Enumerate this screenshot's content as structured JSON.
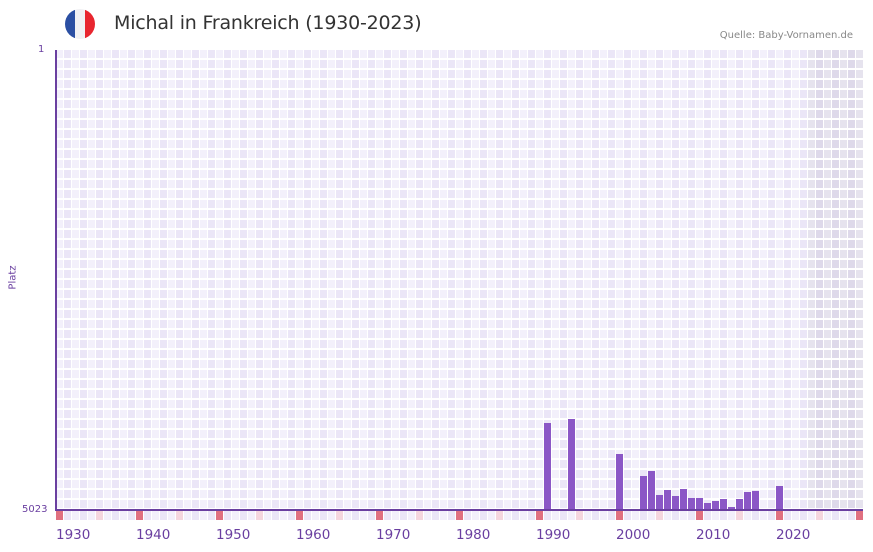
{
  "header": {
    "title": "Michal in Frankreich (1930-2023)",
    "source": "Quelle: Baby-Vornamen.de",
    "flag_colors": [
      "#2b4fa3",
      "#f1f1f4",
      "#e8262f"
    ]
  },
  "colors": {
    "bar": "#8b57c6",
    "axis": "#6a3fa0",
    "grid_light": "#f3f0fb",
    "grid_dark": "#ebe6f7",
    "future_light": "#e6e3ee",
    "future_dark": "#ded9ea",
    "marker_decade": "#e07080",
    "marker_half": "#f5d6de",
    "marker_light": "#f3f0fb",
    "marker_dark": "#ebe6f7"
  },
  "chart_data": {
    "type": "bar",
    "title": "Michal in Frankreich (1930-2023)",
    "xlabel": "",
    "ylabel": "Platz",
    "y_inverted": true,
    "ylim": [
      1,
      5023
    ],
    "xlim": [
      1930,
      2030
    ],
    "y_ticks": [
      "1",
      "5023"
    ],
    "x_ticks": [
      "1930",
      "1940",
      "1950",
      "1960",
      "1970",
      "1980",
      "1990",
      "2000",
      "2010",
      "2020"
    ],
    "future_shaded_from": 2024,
    "grid": true,
    "legend": null,
    "categories": [
      1991,
      1994,
      2000,
      2003,
      2004,
      2005,
      2006,
      2007,
      2008,
      2009,
      2010,
      2011,
      2012,
      2013,
      2014,
      2015,
      2016,
      2017,
      2020
    ],
    "values": [
      4073,
      4029,
      4412,
      4652,
      4597,
      4859,
      4805,
      4870,
      4794,
      4892,
      4892,
      4947,
      4925,
      4903,
      4990,
      4903,
      4827,
      4816,
      4761
    ]
  },
  "axis": {
    "y_label": "Platz",
    "y_top": "1",
    "y_bottom": "5023"
  }
}
